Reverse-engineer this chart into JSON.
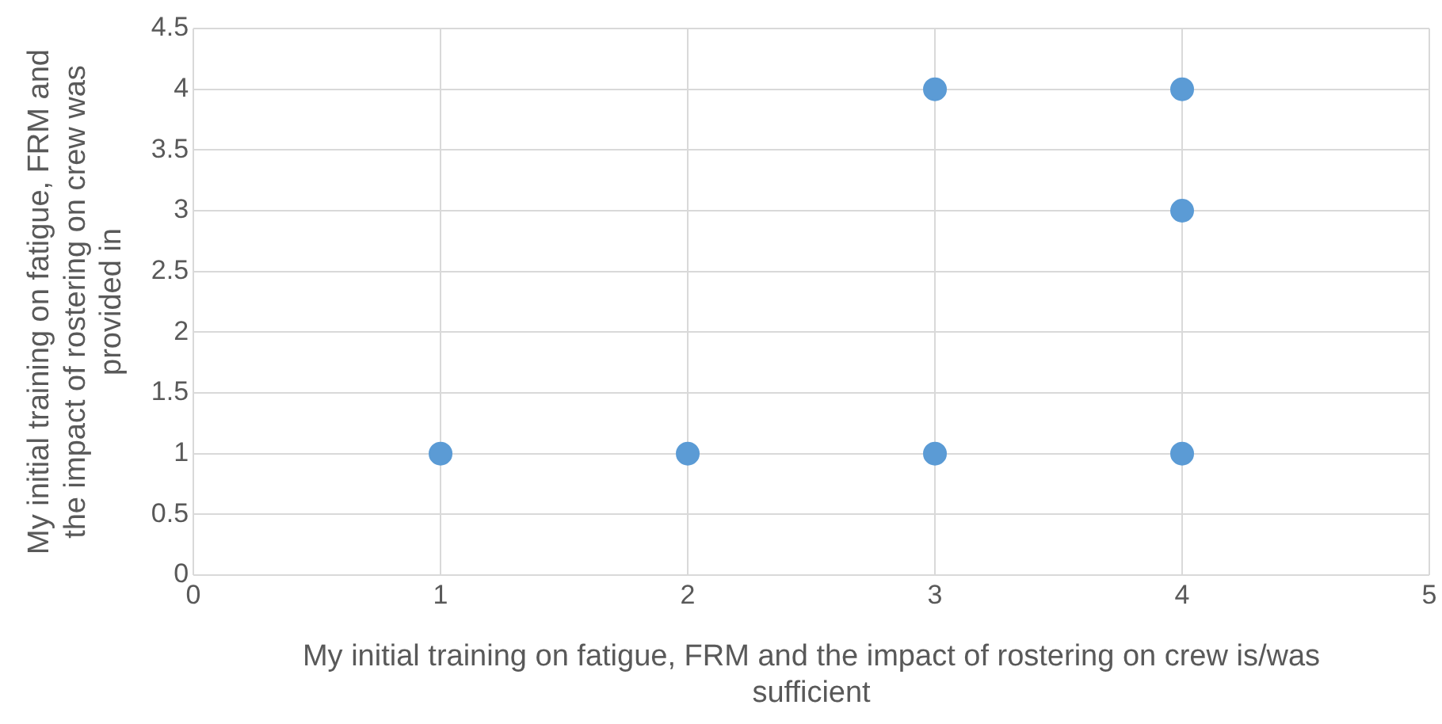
{
  "chart_data": {
    "type": "scatter",
    "xlabel": "My initial training on fatigue, FRM and the impact of rostering on crew is/was sufficient",
    "ylabel": "My initial training on fatigue, FRM and the impact of rostering on crew was provided in",
    "x": [
      1,
      2,
      3,
      3,
      4,
      4,
      4
    ],
    "values": [
      1,
      1,
      1,
      4,
      4,
      3,
      1
    ],
    "color": "#5b9bd5",
    "xlim": [
      0,
      5
    ],
    "xticks": [
      0,
      1,
      2,
      3,
      4,
      5
    ],
    "ylim": [
      0,
      4.5
    ],
    "yticks": [
      0,
      0.5,
      1,
      1.5,
      2,
      2.5,
      3,
      3.5,
      4,
      4.5
    ],
    "grid": true,
    "marker": "circle",
    "legend": false
  }
}
